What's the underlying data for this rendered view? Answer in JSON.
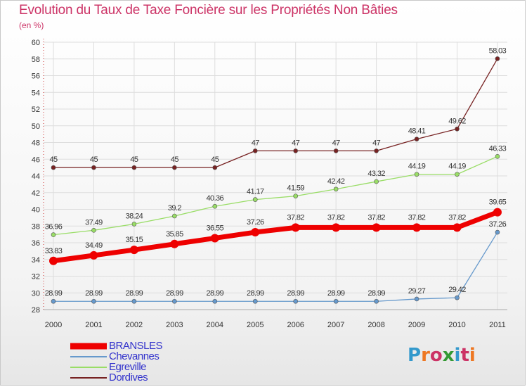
{
  "title": "Evolution du Taux de Taxe Foncière sur les Propriétés Non Bâties",
  "subtitle": "(en %)",
  "logo": "Proxiti",
  "colors": {
    "title": "#cc3366",
    "legend_text": "#3333cc",
    "grid": "#dddddd",
    "axis": "#aaaaaa"
  },
  "chart_data": {
    "type": "line",
    "x": [
      "2000",
      "2001",
      "2002",
      "2003",
      "2004",
      "2005",
      "2006",
      "2007",
      "2008",
      "2009",
      "2010",
      "2011"
    ],
    "ylim": [
      28,
      60
    ],
    "yticks": [
      28,
      30,
      32,
      34,
      36,
      38,
      40,
      42,
      44,
      46,
      48,
      50,
      52,
      54,
      56,
      58,
      60
    ],
    "grid": true,
    "legend_position": "bottom-left",
    "series": [
      {
        "name": "BRANSLES",
        "color": "#ee0000",
        "values": [
          33.83,
          34.49,
          35.15,
          35.85,
          36.55,
          37.26,
          37.82,
          37.82,
          37.82,
          37.82,
          37.82,
          39.65
        ],
        "labels": [
          "33.83",
          "34.49",
          "35.15",
          "35.85",
          "36.55",
          "37.26",
          "37.82",
          "37.82",
          "37.82",
          "37.82",
          "37.82",
          "39.65"
        ]
      },
      {
        "name": "Chevannes",
        "color": "#6699cc",
        "values": [
          28.99,
          28.99,
          28.99,
          28.99,
          28.99,
          28.99,
          28.99,
          28.99,
          28.99,
          29.27,
          29.42,
          37.26
        ],
        "labels": [
          "28.99",
          "28.99",
          "28.99",
          "28.99",
          "28.99",
          "28.99",
          "28.99",
          "28.99",
          "28.99",
          "29.27",
          "29.42",
          "37.26"
        ]
      },
      {
        "name": "Egreville",
        "color": "#99dd66",
        "values": [
          36.96,
          37.49,
          38.24,
          39.2,
          40.36,
          41.17,
          41.59,
          42.42,
          43.32,
          44.19,
          44.19,
          46.33
        ],
        "labels": [
          "36.96",
          "37.49",
          "38.24",
          "39.2",
          "40.36",
          "41.17",
          "41.59",
          "42.42",
          "43.32",
          "44.19",
          "44.19",
          "46.33"
        ]
      },
      {
        "name": "Dordives",
        "color": "#772222",
        "values": [
          45,
          45,
          45,
          45,
          45,
          47,
          47,
          47,
          47,
          48.41,
          49.62,
          58.03
        ],
        "labels": [
          "45",
          "45",
          "45",
          "45",
          "45",
          "47",
          "47",
          "47",
          "47",
          "48.41",
          "49.62",
          "58.03"
        ]
      }
    ]
  }
}
